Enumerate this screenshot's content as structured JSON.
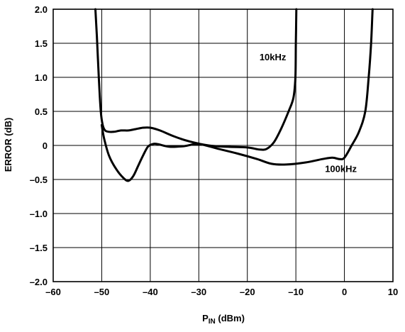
{
  "chart_data": {
    "type": "line",
    "xlabel_main": "P",
    "xlabel_sub": "IN",
    "xlabel_unit": " (dBm)",
    "ylabel": "ERROR (dB)",
    "xlim": [
      -60,
      10
    ],
    "ylim": [
      -2.0,
      2.0
    ],
    "x_ticks": [
      -60,
      -50,
      -40,
      -30,
      -20,
      -10,
      0,
      10
    ],
    "x_tick_labels": [
      "–60",
      "–50",
      "–40",
      "–30",
      "–20",
      "–10",
      "0",
      "10"
    ],
    "y_ticks": [
      2.0,
      1.5,
      1.0,
      0.5,
      0,
      -0.5,
      -1.0,
      -1.5,
      -2.0
    ],
    "y_tick_labels": [
      "2.0",
      "1.5",
      "1.0",
      "0.5",
      "0",
      "–0.5",
      "–1.0",
      "–1.5",
      "–2.0"
    ],
    "grid": true,
    "series": [
      {
        "name": "10kHz",
        "label_at": [
          -17.5,
          1.25
        ],
        "x": [
          -51.3,
          -51.0,
          -50.6,
          -50.2,
          -49.8,
          -49.3,
          -48.5,
          -47.5,
          -46.0,
          -44.5,
          -43.0,
          -41.5,
          -40.0,
          -38.0,
          -35.0,
          -32.0,
          -28.0,
          -24.0,
          -20.0,
          -17.5,
          -16.0,
          -14.5,
          -13.0,
          -11.5,
          -10.5,
          -10.1,
          -10.0,
          -9.9
        ],
        "y": [
          2.0,
          1.6,
          1.0,
          0.5,
          0.3,
          0.22,
          0.2,
          0.2,
          0.22,
          0.22,
          0.24,
          0.26,
          0.26,
          0.22,
          0.13,
          0.06,
          0.0,
          -0.02,
          -0.03,
          -0.06,
          -0.05,
          0.05,
          0.25,
          0.5,
          0.7,
          1.0,
          1.5,
          2.0
        ]
      },
      {
        "name": "100kHz",
        "label_at": [
          -4.0,
          -0.39
        ],
        "x": [
          -50.0,
          -49.5,
          -48.5,
          -47.0,
          -45.5,
          -44.5,
          -43.5,
          -42.5,
          -41.5,
          -40.5,
          -39.5,
          -38.5,
          -36.0,
          -33.0,
          -30.0,
          -26.0,
          -22.0,
          -18.0,
          -15.0,
          -12.0,
          -8.0,
          -4.5,
          -2.5,
          -1.0,
          0.0,
          1.5,
          3.0,
          4.3,
          5.0,
          5.5,
          5.8
        ],
        "y": [
          0.3,
          0.1,
          -0.15,
          -0.35,
          -0.48,
          -0.52,
          -0.45,
          -0.3,
          -0.15,
          -0.02,
          0.02,
          0.02,
          -0.02,
          -0.01,
          0.02,
          -0.05,
          -0.12,
          -0.2,
          -0.27,
          -0.28,
          -0.25,
          -0.2,
          -0.18,
          -0.2,
          -0.18,
          0.0,
          0.2,
          0.5,
          1.0,
          1.5,
          2.0
        ]
      }
    ]
  }
}
